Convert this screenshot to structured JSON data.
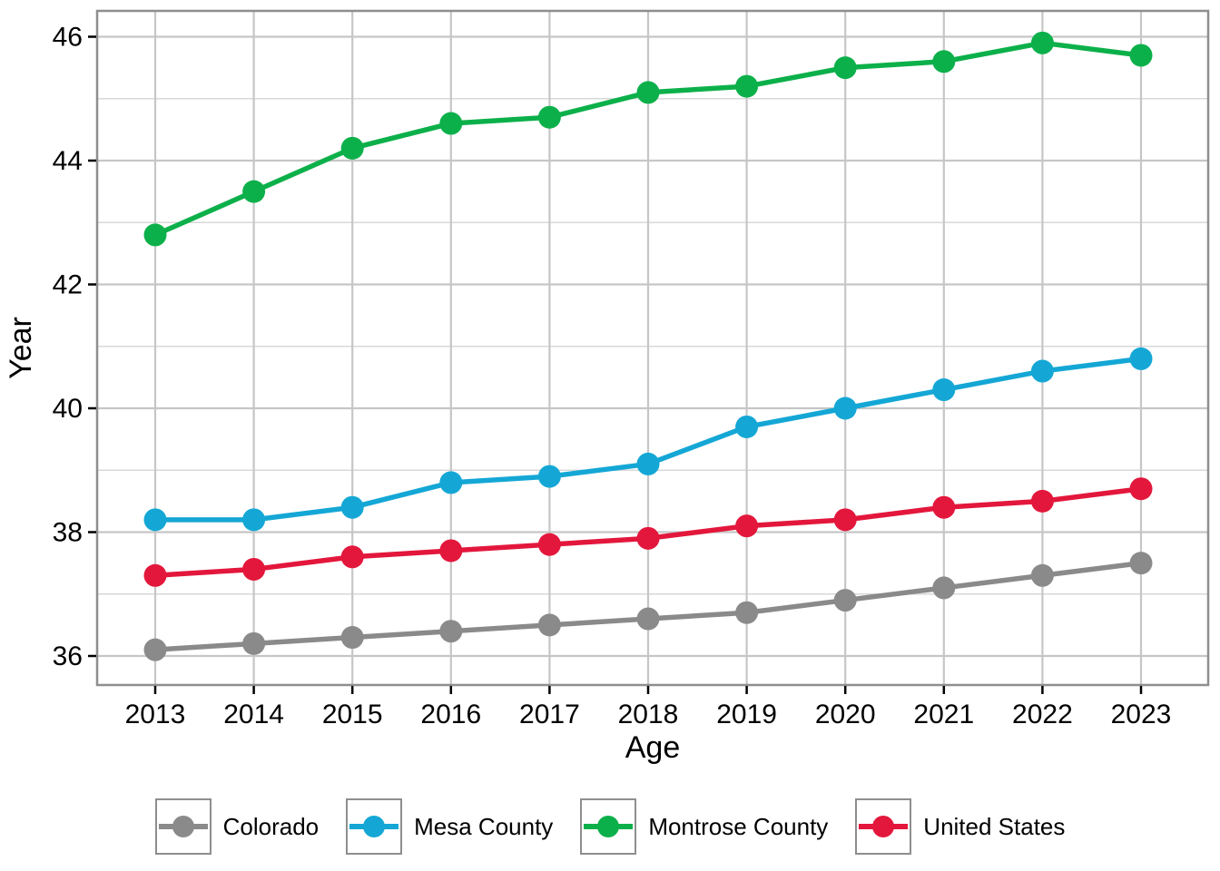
{
  "chart_data": {
    "type": "line",
    "title": "",
    "xlabel": "Age",
    "ylabel": "Year",
    "x": [
      2013,
      2014,
      2015,
      2016,
      2017,
      2018,
      2019,
      2020,
      2021,
      2022,
      2023
    ],
    "x_tick_labels": [
      "2013",
      "2014",
      "2015",
      "2016",
      "2017",
      "2018",
      "2019",
      "2020",
      "2021",
      "2022",
      "2023"
    ],
    "ylim": [
      35.5,
      46.4
    ],
    "y_ticks": [
      36,
      38,
      40,
      42,
      44,
      46
    ],
    "y_minor_ticks": [
      37,
      39,
      41,
      43,
      45
    ],
    "grid": "horizontal major+minor, vertical major only",
    "legend_position": "bottom",
    "series": [
      {
        "name": "Colorado",
        "color": "#8A8A8A",
        "values": [
          36.1,
          36.2,
          36.3,
          36.4,
          36.5,
          36.6,
          36.7,
          36.9,
          37.1,
          37.3,
          37.5
        ]
      },
      {
        "name": "Mesa County",
        "color": "#14A7D5",
        "values": [
          38.2,
          38.2,
          38.4,
          38.8,
          38.9,
          39.1,
          39.7,
          40.0,
          40.3,
          40.6,
          40.8
        ]
      },
      {
        "name": "Montrose County",
        "color": "#0CB04A",
        "values": [
          42.8,
          43.5,
          44.2,
          44.6,
          44.7,
          45.1,
          45.2,
          45.5,
          45.6,
          45.9,
          45.7
        ]
      },
      {
        "name": "United States",
        "color": "#E3173C",
        "values": [
          37.3,
          37.4,
          37.6,
          37.7,
          37.8,
          37.9,
          38.1,
          38.2,
          38.4,
          38.5,
          38.7
        ]
      }
    ],
    "colors": {
      "panel_border": "#8E8E8E",
      "grid_major": "#C6C6C6",
      "grid_minor": "#D8D8D8",
      "tick": "#000000",
      "text": "#000000"
    }
  }
}
